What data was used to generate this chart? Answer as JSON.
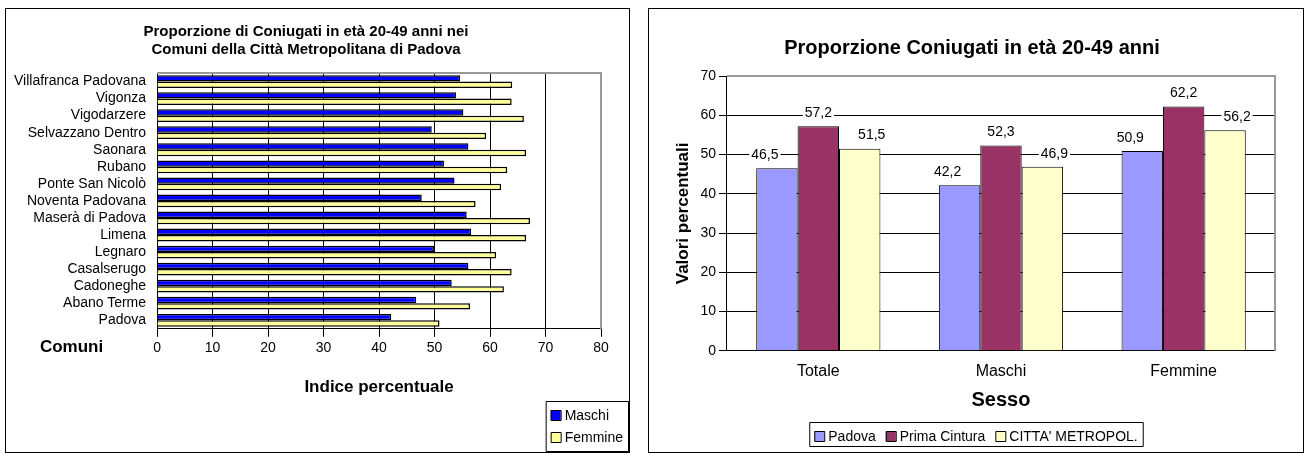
{
  "chart_data": [
    {
      "type": "bar",
      "orientation": "horizontal",
      "title": "Proporzione di Coniugati in età 20-49 anni nei\nComuni della Città Metropolitana di Padova",
      "xlabel": "Indice percentuale",
      "ylabel": "Comuni",
      "categories": [
        "Villafranca Padovana",
        "Vigonza",
        "Vigodarzere",
        "Selvazzano Dentro",
        "Saonara",
        "Rubano",
        "Ponte San Nicolò",
        "Noventa Padovana",
        "Maserà di Padova",
        "Limena",
        "Legnaro",
        "Casalserugo",
        "Cadoneghe",
        "Abano Terme",
        "Padova"
      ],
      "series": [
        {
          "name": "Maschi",
          "color": "#0000ff",
          "values": [
            54.6,
            53.9,
            55.2,
            49.5,
            56.1,
            51.7,
            53.6,
            47.7,
            55.8,
            56.6,
            49.9,
            56.1,
            53.1,
            46.7,
            42.2
          ]
        },
        {
          "name": "Femmine",
          "color": "#ffff99",
          "values": [
            64.0,
            63.9,
            66.1,
            59.3,
            66.5,
            63.1,
            62.0,
            57.4,
            67.2,
            66.5,
            61.1,
            63.9,
            62.5,
            56.4,
            50.9
          ]
        }
      ],
      "xlim": [
        0,
        80
      ],
      "xticks": [
        0,
        10,
        20,
        30,
        40,
        50,
        60,
        70,
        80
      ],
      "grid": "x",
      "legend": "bottom right"
    },
    {
      "type": "bar",
      "title": "Proporzione Coniugati in età 20-49 anni",
      "xlabel": "Sesso",
      "ylabel": "Valori percentuali",
      "categories": [
        "Totale",
        "Maschi",
        "Femmine"
      ],
      "series": [
        {
          "name": "Padova",
          "color": "#9999ff",
          "values": [
            46.5,
            42.2,
            50.9
          ],
          "value_labels": [
            "46,5",
            "42,2",
            "50,9"
          ]
        },
        {
          "name": "Prima Cintura",
          "color": "#993366",
          "values": [
            57.2,
            52.3,
            62.2
          ],
          "value_labels": [
            "57,2",
            "52,3",
            "62,2"
          ]
        },
        {
          "name": "CITTA' METROPOL.",
          "color": "#ffffcc",
          "values": [
            51.5,
            46.9,
            56.2
          ],
          "value_labels": [
            "51,5",
            "46,9",
            "56,2"
          ]
        }
      ],
      "ylim": [
        0,
        70
      ],
      "yticks": [
        0,
        10,
        20,
        30,
        40,
        50,
        60,
        70
      ],
      "grid": "y",
      "legend": "bottom"
    }
  ]
}
